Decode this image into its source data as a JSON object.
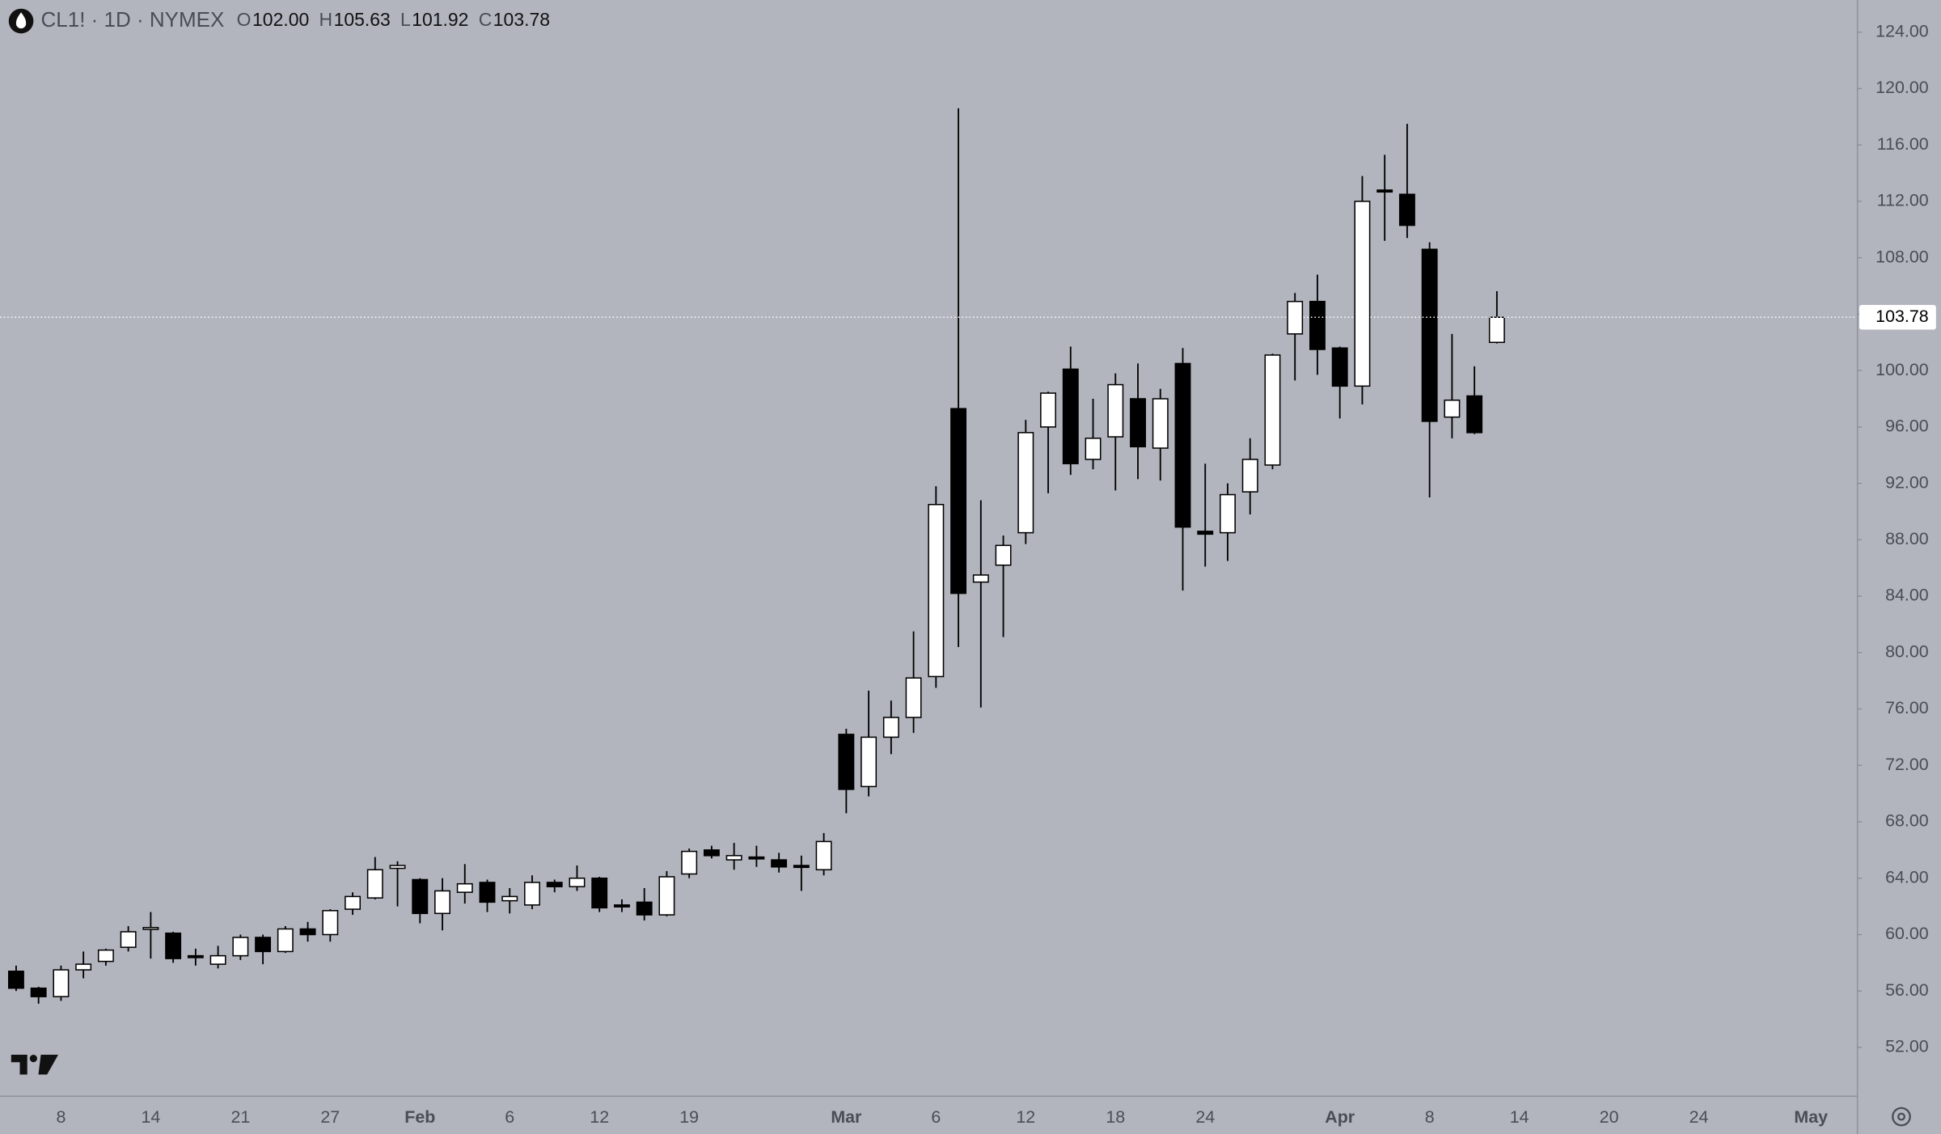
{
  "chart_data": {
    "type": "candlestick",
    "title": "CL1! · 1D · NYMEX",
    "ohlc_legend": [
      {
        "key": "O",
        "text": "102.00"
      },
      {
        "key": "H",
        "text": "105.63"
      },
      {
        "key": "L",
        "text": "101.92"
      },
      {
        "key": "C",
        "text": "103.78"
      }
    ],
    "last_price_label": "103.78",
    "up_color": "#ffffff",
    "down_color": "#000000",
    "categories": [
      null,
      null,
      "8",
      null,
      null,
      null,
      "14",
      null,
      null,
      null,
      "21",
      null,
      null,
      null,
      "27",
      null,
      null,
      null,
      "Feb",
      null,
      null,
      null,
      "6",
      null,
      null,
      null,
      "12",
      null,
      null,
      null,
      "19",
      null,
      null,
      null,
      null,
      null,
      null,
      "Mar",
      null,
      null,
      null,
      "6",
      null,
      null,
      null,
      "12",
      null,
      null,
      null,
      "18",
      null,
      null,
      null,
      "24",
      null,
      null,
      null,
      null,
      null,
      "Apr",
      null,
      null,
      null,
      "8",
      null,
      null,
      null,
      "14",
      null,
      null,
      null,
      "20",
      null,
      null,
      null,
      "24",
      null,
      null,
      null,
      null,
      "May"
    ],
    "open": [
      57.4,
      56.2,
      55.6,
      57.5,
      58.1,
      59.1,
      60.4,
      60.1,
      58.5,
      57.9,
      58.5,
      59.8,
      58.8,
      60.4,
      60.0,
      61.8,
      62.6,
      64.7,
      63.9,
      61.5,
      63.0,
      63.7,
      62.4,
      62.1,
      63.7,
      63.4,
      64.0,
      62.1,
      62.3,
      61.4,
      64.3,
      66.0,
      65.3,
      65.5,
      65.3,
      64.9,
      64.6,
      74.2,
      70.5,
      74.0,
      75.4,
      78.3,
      97.3,
      85.0,
      86.2,
      88.5,
      96.0,
      100.1,
      93.7,
      95.3,
      98.0,
      94.5,
      100.5,
      88.6,
      88.5,
      91.4,
      93.3,
      102.6,
      104.9,
      101.6,
      98.9,
      112.8,
      112.5,
      108.6,
      96.7,
      98.2,
      102.0,
      null,
      null,
      null,
      null,
      null,
      null,
      null,
      null,
      null,
      null,
      null,
      null,
      null,
      null
    ],
    "high": [
      57.8,
      56.3,
      57.8,
      58.8,
      59.0,
      60.6,
      61.6,
      60.2,
      59.0,
      59.2,
      60.0,
      60.0,
      60.6,
      60.9,
      61.8,
      63.0,
      65.5,
      65.2,
      64.0,
      64.0,
      65.0,
      63.9,
      63.3,
      64.2,
      63.9,
      64.9,
      64.1,
      62.5,
      63.3,
      64.5,
      66.1,
      66.3,
      66.5,
      66.3,
      65.8,
      65.6,
      67.2,
      74.6,
      77.3,
      76.6,
      81.5,
      91.8,
      118.6,
      90.8,
      88.3,
      96.5,
      98.5,
      101.7,
      98.0,
      99.8,
      100.5,
      98.7,
      101.6,
      93.4,
      92.0,
      95.2,
      101.2,
      105.5,
      106.8,
      101.7,
      113.8,
      115.3,
      117.5,
      109.1,
      102.6,
      100.3,
      105.63,
      null,
      null,
      null,
      null,
      null,
      null,
      null,
      null,
      null,
      null,
      null,
      null,
      null,
      null
    ],
    "low": [
      56.0,
      55.1,
      55.3,
      56.9,
      57.8,
      58.8,
      58.3,
      58.0,
      57.8,
      57.6,
      58.2,
      57.9,
      58.7,
      59.5,
      59.5,
      61.4,
      62.5,
      62.0,
      60.8,
      60.3,
      62.2,
      61.6,
      61.5,
      61.8,
      63.0,
      63.1,
      61.6,
      61.6,
      61.0,
      61.3,
      64.0,
      65.4,
      64.6,
      64.8,
      64.4,
      63.1,
      64.2,
      68.6,
      69.8,
      72.8,
      74.3,
      77.5,
      80.4,
      76.1,
      81.1,
      87.7,
      91.3,
      92.6,
      93.0,
      91.5,
      92.3,
      92.2,
      84.4,
      86.1,
      86.5,
      89.8,
      93.0,
      99.3,
      99.7,
      96.6,
      97.6,
      109.2,
      109.4,
      91.0,
      95.2,
      95.5,
      101.92,
      null,
      null,
      null,
      null,
      null,
      null,
      null,
      null,
      null,
      null,
      null,
      null,
      null,
      null
    ],
    "close": [
      56.2,
      55.6,
      57.5,
      57.9,
      58.9,
      60.2,
      60.5,
      58.3,
      58.4,
      58.5,
      59.8,
      58.8,
      60.4,
      60.0,
      61.7,
      62.7,
      64.6,
      64.9,
      61.5,
      63.1,
      63.6,
      62.3,
      62.7,
      63.7,
      63.4,
      64.0,
      61.9,
      62.0,
      61.4,
      64.1,
      65.9,
      65.6,
      65.6,
      65.4,
      64.8,
      64.8,
      66.6,
      70.3,
      74.0,
      75.4,
      78.2,
      90.5,
      84.2,
      85.5,
      87.6,
      95.6,
      98.4,
      93.4,
      95.2,
      99.0,
      94.6,
      98.0,
      88.9,
      88.4,
      91.2,
      93.7,
      101.1,
      104.9,
      101.5,
      98.9,
      112.0,
      112.7,
      110.3,
      96.4,
      97.9,
      95.6,
      103.78,
      null,
      null,
      null,
      null,
      null,
      null,
      null,
      null,
      null,
      null,
      null,
      null,
      null,
      null
    ],
    "ylim": [
      48.58,
      126.28
    ],
    "yticks": [
      {
        "value": 52,
        "label": "52.00"
      },
      {
        "value": 56,
        "label": "56.00"
      },
      {
        "value": 60,
        "label": "60.00"
      },
      {
        "value": 64,
        "label": "64.00"
      },
      {
        "value": 68,
        "label": "68.00"
      },
      {
        "value": 72,
        "label": "72.00"
      },
      {
        "value": 76,
        "label": "76.00"
      },
      {
        "value": 80,
        "label": "80.00"
      },
      {
        "value": 84,
        "label": "84.00"
      },
      {
        "value": 88,
        "label": "88.00"
      },
      {
        "value": 92,
        "label": "92.00"
      },
      {
        "value": 96,
        "label": "96.00"
      },
      {
        "value": 100,
        "label": "100.00"
      },
      {
        "value": 104,
        "label": "104.00"
      },
      {
        "value": 108,
        "label": "108.00"
      },
      {
        "value": 112,
        "label": "112.00"
      },
      {
        "value": 116,
        "label": "116.00"
      },
      {
        "value": 120,
        "label": "120.00"
      },
      {
        "value": 124,
        "label": "124.00"
      }
    ],
    "grid": false
  }
}
